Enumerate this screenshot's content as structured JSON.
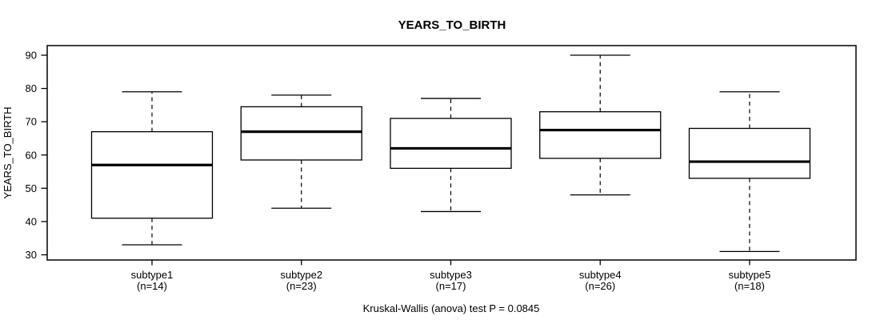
{
  "chart_data": {
    "type": "boxplot",
    "title": "YEARS_TO_BIRTH",
    "ylabel": "YEARS_TO_BIRTH",
    "xlabel": "",
    "annotation": "Kruskal-Wallis (anova) test P = 0.0845",
    "ylim": [
      30,
      90
    ],
    "yticks": [
      30,
      40,
      50,
      60,
      70,
      80,
      90
    ],
    "grid": false,
    "legend": "none",
    "categories": [
      "subtype1",
      "subtype2",
      "subtype3",
      "subtype4",
      "subtype5"
    ],
    "sublabels": [
      "(n=14)",
      "(n=23)",
      "(n=17)",
      "(n=26)",
      "(n=18)"
    ],
    "series": [
      {
        "name": "subtype1",
        "n": 14,
        "whisker_low": 33,
        "q1": 41,
        "median": 57,
        "q3": 67,
        "whisker_high": 79
      },
      {
        "name": "subtype2",
        "n": 23,
        "whisker_low": 44,
        "q1": 58.5,
        "median": 67,
        "q3": 74.5,
        "whisker_high": 78
      },
      {
        "name": "subtype3",
        "n": 17,
        "whisker_low": 43,
        "q1": 56,
        "median": 62,
        "q3": 71,
        "whisker_high": 77
      },
      {
        "name": "subtype4",
        "n": 26,
        "whisker_low": 48,
        "q1": 59,
        "median": 67.5,
        "q3": 73,
        "whisker_high": 90
      },
      {
        "name": "subtype5",
        "n": 18,
        "whisker_low": 31,
        "q1": 53,
        "median": 58,
        "q3": 68,
        "whisker_high": 79
      }
    ],
    "colors": {
      "line": "#000000",
      "median": "#000000",
      "box_fill": "#ffffff",
      "background": "#ffffff"
    }
  }
}
